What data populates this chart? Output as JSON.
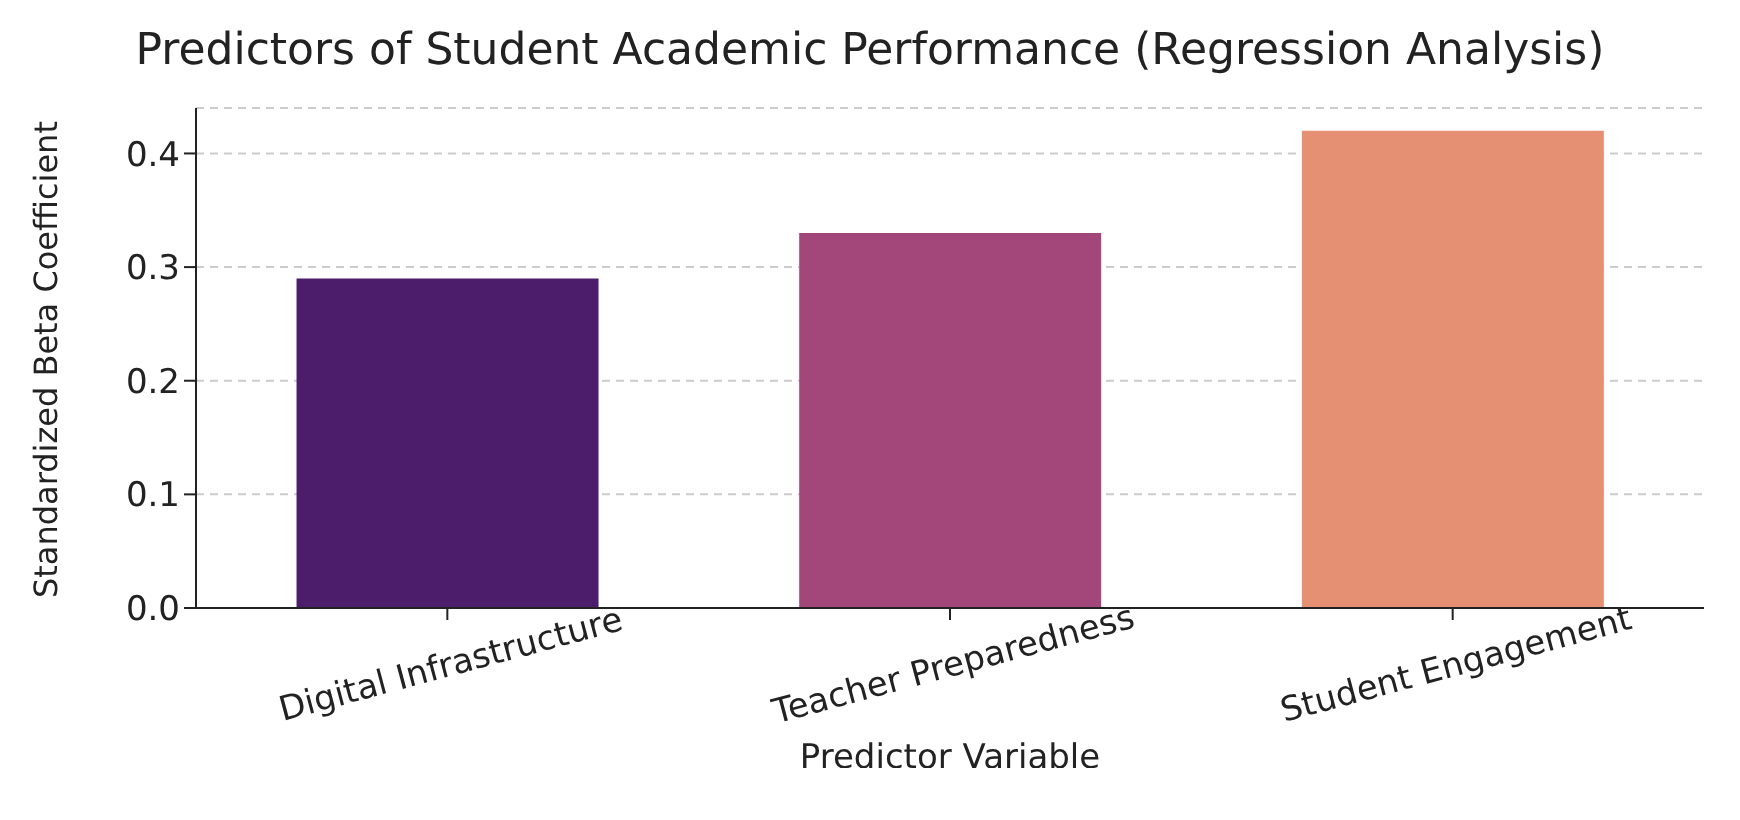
{
  "chart_data": {
    "type": "bar",
    "title": "Predictors of Student Academic Performance (Regression Analysis)",
    "xlabel": "Predictor Variable",
    "ylabel": "Standardized Beta Coefficient",
    "categories": [
      "Digital Infrastructure",
      "Teacher Preparedness",
      "Student Engagement"
    ],
    "values": [
      0.29,
      0.33,
      0.42
    ],
    "colors": [
      "#4c1d6b",
      "#a3467a",
      "#e69073"
    ],
    "ylim": [
      0,
      0.44
    ],
    "yticks": [
      {
        "value": 0,
        "label": "0.0"
      },
      0.1,
      0.2,
      0.3,
      0.4
    ],
    "grid": "y"
  }
}
